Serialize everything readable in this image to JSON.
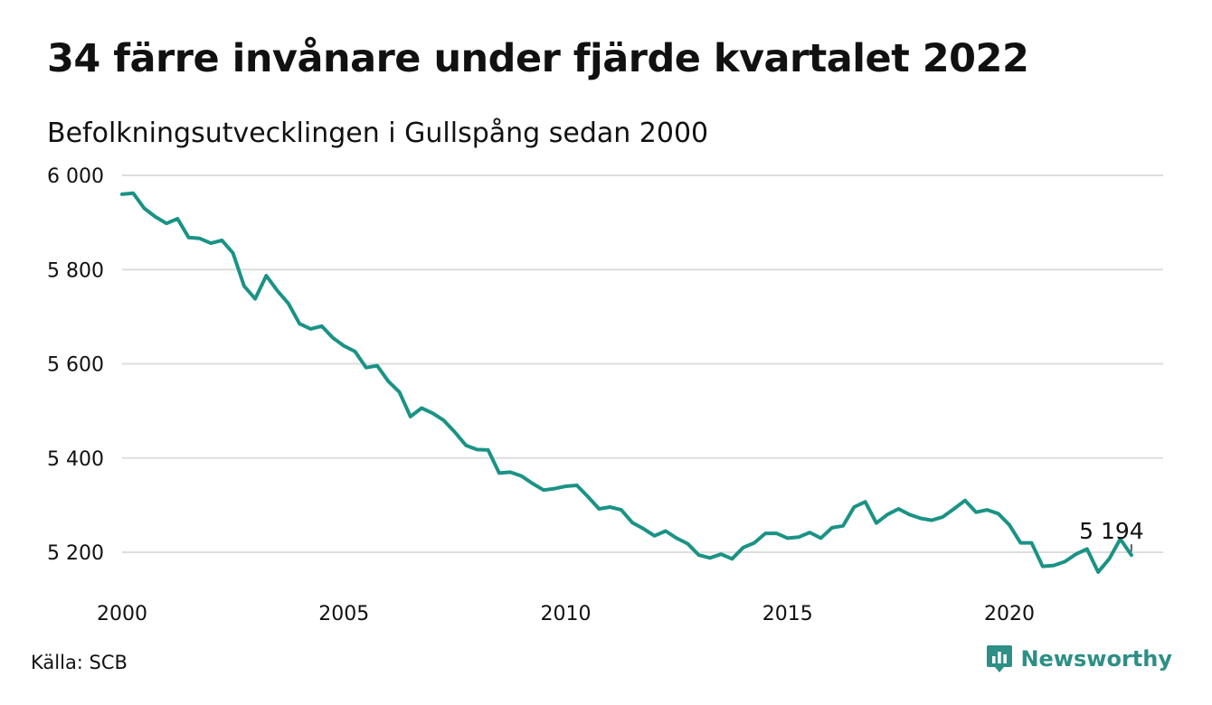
{
  "header": {
    "title": "34 färre invånare under fjärde kvartalet 2022",
    "subtitle": "Befolkningsutvecklingen i Gullspång sedan 2000"
  },
  "footer": {
    "source": "Källa: SCB",
    "brand": "Newsworthy",
    "brand_icon": "newsworthy-logo-icon"
  },
  "colors": {
    "line": "#1a9385",
    "grid": "#dddddd",
    "brand": "#2d8f85",
    "text": "#111111"
  },
  "chart_data": {
    "type": "line",
    "title": "34 färre invånare under fjärde kvartalet 2022",
    "subtitle": "Befolkningsutvecklingen i Gullspång sedan 2000",
    "xlabel": "",
    "ylabel": "",
    "x_ticks": [
      2000,
      2005,
      2010,
      2015,
      2020
    ],
    "y_ticks": [
      5200,
      5400,
      5600,
      5800,
      6000
    ],
    "y_tick_labels": [
      "5 200",
      "5 400",
      "5 600",
      "5 800",
      "6 000"
    ],
    "x_tick_labels": [
      "2000",
      "2005",
      "2010",
      "2015",
      "2020"
    ],
    "xlim": [
      2000,
      2023
    ],
    "ylim": [
      5120,
      6000
    ],
    "grid": "horizontal",
    "legend": "none",
    "annotation": {
      "x": 2022.75,
      "y": 5194,
      "label": "5 194"
    },
    "series": [
      {
        "x": [
          2000.0,
          2000.25,
          2000.5,
          2000.75,
          2001.0,
          2001.25,
          2001.5,
          2001.75,
          2002.0,
          2002.25,
          2002.5,
          2002.75,
          2003.0,
          2003.25,
          2003.5,
          2003.75,
          2004.0,
          2004.25,
          2004.5,
          2004.75,
          2005.0,
          2005.25,
          2005.5,
          2005.75,
          2006.0,
          2006.25,
          2006.5,
          2006.75,
          2007.0,
          2007.25,
          2007.5,
          2007.75,
          2008.0,
          2008.25,
          2008.5,
          2008.75,
          2009.0,
          2009.25,
          2009.5,
          2009.75,
          2010.0,
          2010.25,
          2010.5,
          2010.75,
          2011.0,
          2011.25,
          2011.5,
          2011.75,
          2012.0,
          2012.25,
          2012.5,
          2012.75,
          2013.0,
          2013.25,
          2013.5,
          2013.75,
          2014.0,
          2014.25,
          2014.5,
          2014.75,
          2015.0,
          2015.25,
          2015.5,
          2015.75,
          2016.0,
          2016.25,
          2016.5,
          2016.75,
          2017.0,
          2017.25,
          2017.5,
          2017.75,
          2018.0,
          2018.25,
          2018.5,
          2018.75,
          2019.0,
          2019.25,
          2019.5,
          2019.75,
          2020.0,
          2020.25,
          2020.5,
          2020.75,
          2021.0,
          2021.25,
          2021.5,
          2021.75,
          2022.0,
          2022.25,
          2022.5,
          2022.75
        ],
        "values": [
          5960,
          5962,
          5930,
          5912,
          5898,
          5908,
          5868,
          5866,
          5856,
          5862,
          5835,
          5765,
          5738,
          5787,
          5755,
          5728,
          5685,
          5674,
          5680,
          5655,
          5638,
          5626,
          5592,
          5596,
          5563,
          5540,
          5488,
          5506,
          5495,
          5480,
          5455,
          5427,
          5418,
          5417,
          5368,
          5370,
          5362,
          5346,
          5332,
          5335,
          5340,
          5342,
          5318,
          5292,
          5296,
          5290,
          5263,
          5250,
          5235,
          5245,
          5230,
          5218,
          5194,
          5188,
          5196,
          5186,
          5210,
          5220,
          5240,
          5240,
          5230,
          5232,
          5242,
          5230,
          5252,
          5256,
          5296,
          5307,
          5262,
          5280,
          5292,
          5280,
          5272,
          5268,
          5275,
          5292,
          5310,
          5285,
          5290,
          5282,
          5258,
          5220,
          5220,
          5170,
          5172,
          5180,
          5196,
          5207,
          5158,
          5186,
          5228,
          5194
        ]
      }
    ]
  }
}
